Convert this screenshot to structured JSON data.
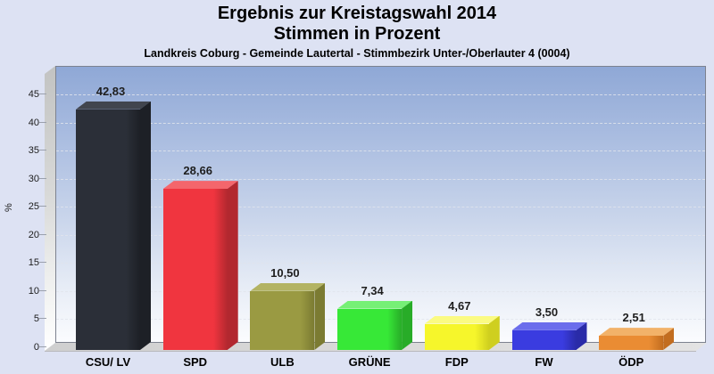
{
  "header": {
    "title_line1": "Ergebnis zur Kreistagswahl 2014",
    "title_line2": "Stimmen in Prozent",
    "caption": "Landkreis Coburg - Gemeinde Lautertal - Stimmbezirk Unter-/Oberlauter 4 (0004)"
  },
  "chart_data": {
    "type": "bar",
    "title": "Ergebnis zur Kreistagswahl 2014",
    "subtitle": "Stimmen in Prozent",
    "caption": "Landkreis Coburg - Gemeinde Lautertal - Stimmbezirk Unter-/Oberlauter 4 (0004)",
    "xlabel": "",
    "ylabel": "%",
    "ylim": [
      0,
      50
    ],
    "yticks": [
      0,
      5,
      10,
      15,
      20,
      25,
      30,
      35,
      40,
      45
    ],
    "grid": true,
    "grid_style": "dashed",
    "legend": "none",
    "style": "3d-bars",
    "decimal_separator": ",",
    "categories": [
      "CSU/ LV",
      "SPD",
      "ULB",
      "GRÜNE",
      "FDP",
      "FW",
      "ÖDP"
    ],
    "values": [
      42.83,
      28.66,
      10.5,
      7.34,
      4.67,
      3.5,
      2.51
    ],
    "value_labels": [
      "42,83",
      "28,66",
      "10,50",
      "7,34",
      "4,67",
      "3,50",
      "2,51"
    ],
    "bar_colors": [
      {
        "party": "CSU/ LV",
        "front": "#2b2f38",
        "top": "#41454e",
        "side": "#1d2026"
      },
      {
        "party": "SPD",
        "front": "#f0353f",
        "top": "#f4666c",
        "side": "#b2282f"
      },
      {
        "party": "ULB",
        "front": "#9a9a42",
        "top": "#b3b363",
        "side": "#7b7b32"
      },
      {
        "party": "GRÜNE",
        "front": "#37e837",
        "top": "#76f076",
        "side": "#28ac28"
      },
      {
        "party": "FDP",
        "front": "#f6f62b",
        "top": "#fbfb82",
        "side": "#cfcf1f"
      },
      {
        "party": "FW",
        "front": "#3a3ce0",
        "top": "#6b6dec",
        "side": "#2a2ba8"
      },
      {
        "party": "ÖDP",
        "front": "#ea8c33",
        "top": "#f2b269",
        "side": "#c26d1f"
      }
    ],
    "background_top_color": "#8fa8d6",
    "page_background_color": "#dde2f3"
  }
}
